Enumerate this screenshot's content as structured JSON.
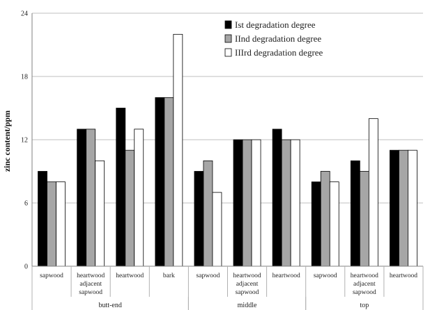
{
  "chart_data": {
    "type": "bar",
    "title": "",
    "xlabel": "",
    "ylabel": "zinc content/ppm",
    "ylim": [
      0,
      24
    ],
    "yticks": [
      "0",
      "6",
      "12",
      "18",
      "24"
    ],
    "grid": true,
    "legend_position": "top-right",
    "groups": [
      {
        "name": "butt-end",
        "categories": [
          "sapwood",
          "heartwood adjacent sapwood",
          "heartwood",
          "bark"
        ]
      },
      {
        "name": "middle",
        "categories": [
          "sapwood",
          "heartwood adjacent sapwood",
          "heartwood"
        ]
      },
      {
        "name": "top",
        "categories": [
          "sapwood",
          "heartwood adjacent sapwood",
          "heartwood"
        ]
      }
    ],
    "series": [
      {
        "name": "Ist degradation degree",
        "color": "#000000",
        "values": [
          9,
          13,
          15,
          16,
          9,
          12,
          13,
          8,
          10,
          11
        ]
      },
      {
        "name": "IInd degradation degree",
        "color": "#a6a6a6",
        "values": [
          8,
          13,
          11,
          16,
          10,
          12,
          12,
          9,
          9,
          11
        ]
      },
      {
        "name": "IIIrd degradation degree",
        "color": "#ffffff",
        "values": [
          8,
          10,
          13,
          22,
          7,
          12,
          12,
          8,
          14,
          11
        ]
      }
    ]
  }
}
